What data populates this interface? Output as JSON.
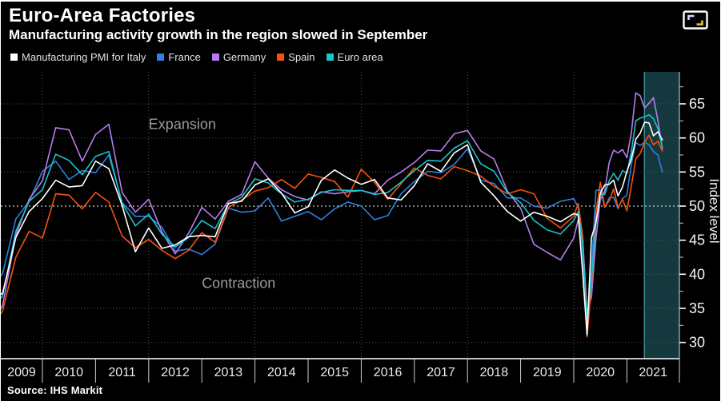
{
  "header": {
    "title": "Euro-Area Factories",
    "subtitle": "Manufacturing activity growth in the region slowed in September"
  },
  "icons": {
    "expand": "expand-chart-icon"
  },
  "source": "Source: IHS Markit",
  "chart_data": {
    "type": "line",
    "title": "Euro-Area Factories",
    "xlabel": "",
    "ylabel": "Index level",
    "ylim": [
      27.5,
      70
    ],
    "yticks": [
      30,
      35,
      40,
      45,
      50,
      55,
      60,
      65
    ],
    "yticks_minor": [
      32.5,
      37.5,
      42.5,
      47.5,
      52.5,
      57.5,
      62.5,
      67.5
    ],
    "xticks_years": [
      2009,
      2010,
      2011,
      2012,
      2013,
      2014,
      2015,
      2016,
      2017,
      2018,
      2019,
      2020,
      2021
    ],
    "grid_vertical_years": [
      2010,
      2012,
      2014,
      2016,
      2018,
      2020
    ],
    "threshold_line": 50,
    "legend_position": "top",
    "annotations": [
      {
        "text": "Expansion",
        "x": 2012.0,
        "y": 61.3
      },
      {
        "text": "Contraction",
        "x": 2013.0,
        "y": 38.0
      }
    ],
    "highlight_band": {
      "x_start": 2021.33,
      "x_end": 2021.98,
      "fill": "#14383d",
      "edge": "#35908e"
    },
    "x": [
      2009.0,
      2009.25,
      2009.5,
      2009.75,
      2010.0,
      2010.25,
      2010.5,
      2010.75,
      2011.0,
      2011.25,
      2011.5,
      2011.75,
      2012.0,
      2012.25,
      2012.5,
      2012.75,
      2013.0,
      2013.25,
      2013.5,
      2013.75,
      2014.0,
      2014.25,
      2014.5,
      2014.75,
      2015.0,
      2015.25,
      2015.5,
      2015.75,
      2016.0,
      2016.25,
      2016.5,
      2016.75,
      2017.0,
      2017.25,
      2017.5,
      2017.75,
      2018.0,
      2018.25,
      2018.5,
      2018.75,
      2019.0,
      2019.25,
      2019.5,
      2019.75,
      2020.0,
      2020.083,
      2020.167,
      2020.25,
      2020.333,
      2020.417,
      2020.5,
      2020.583,
      2020.667,
      2020.75,
      2020.833,
      2020.917,
      2021.0,
      2021.083,
      2021.167,
      2021.25,
      2021.333,
      2021.417,
      2021.5,
      2021.583,
      2021.667
    ],
    "series": [
      {
        "name": "Manufacturing PMI for Italy",
        "color": "#ffffff",
        "values": [
          36.1,
          37.2,
          45.4,
          49.2,
          51.1,
          53.8,
          52.8,
          53.0,
          56.6,
          55.5,
          50.1,
          43.3,
          46.8,
          43.8,
          44.3,
          45.5,
          45.7,
          45.5,
          50.4,
          50.7,
          53.1,
          54.0,
          51.9,
          49.0,
          49.9,
          53.8,
          55.3,
          54.1,
          53.2,
          53.9,
          51.2,
          50.9,
          53.0,
          56.2,
          55.1,
          57.8,
          59.0,
          53.5,
          51.5,
          49.2,
          47.8,
          49.1,
          48.5,
          47.7,
          48.9,
          48.7,
          40.3,
          31.1,
          45.4,
          47.5,
          51.9,
          53.1,
          53.2,
          53.8,
          51.5,
          52.8,
          55.1,
          56.9,
          59.8,
          60.7,
          62.3,
          62.2,
          60.3,
          60.9,
          59.7
        ]
      },
      {
        "name": "France",
        "color": "#2e80e0",
        "values": [
          37.9,
          40.1,
          48.1,
          50.7,
          55.1,
          56.6,
          53.9,
          55.2,
          54.9,
          57.5,
          50.5,
          48.5,
          48.5,
          46.9,
          43.4,
          43.7,
          42.9,
          44.4,
          49.7,
          49.1,
          49.3,
          51.2,
          47.8,
          48.5,
          49.2,
          48.0,
          49.6,
          50.6,
          50.0,
          48.0,
          48.6,
          51.8,
          53.6,
          55.1,
          54.9,
          56.1,
          58.4,
          53.8,
          53.3,
          51.2,
          51.2,
          50.0,
          49.7,
          50.7,
          51.1,
          49.8,
          43.2,
          31.5,
          40.6,
          52.3,
          52.4,
          49.8,
          51.2,
          51.3,
          49.6,
          51.1,
          51.6,
          56.1,
          59.3,
          58.9,
          59.4,
          59.0,
          58.0,
          57.5,
          55.0
        ]
      },
      {
        "name": "Germany",
        "color": "#b87cee",
        "values": [
          32.0,
          35.4,
          45.7,
          51.0,
          53.7,
          61.5,
          61.2,
          56.6,
          60.5,
          62.0,
          52.0,
          49.1,
          51.0,
          46.2,
          43.0,
          46.0,
          49.8,
          48.1,
          50.7,
          51.7,
          56.5,
          54.1,
          52.4,
          51.4,
          50.9,
          52.1,
          51.8,
          52.1,
          52.3,
          51.8,
          53.8,
          55.0,
          56.4,
          58.2,
          58.1,
          60.6,
          61.1,
          58.1,
          56.9,
          52.2,
          49.7,
          44.4,
          43.2,
          42.1,
          45.3,
          48.0,
          45.4,
          34.5,
          36.6,
          45.2,
          51.0,
          52.2,
          56.4,
          58.2,
          57.8,
          58.3,
          57.1,
          60.7,
          66.6,
          66.2,
          64.4,
          65.1,
          65.9,
          62.6,
          58.4
        ]
      },
      {
        "name": "Spain",
        "color": "#f4520d",
        "values": [
          31.8,
          34.6,
          42.5,
          46.3,
          45.3,
          51.8,
          51.6,
          49.6,
          52.0,
          50.6,
          45.6,
          43.9,
          45.1,
          43.5,
          42.3,
          43.5,
          46.1,
          44.7,
          49.8,
          50.9,
          52.2,
          52.7,
          53.9,
          52.6,
          54.7,
          54.2,
          53.6,
          51.3,
          55.4,
          53.5,
          51.0,
          53.3,
          55.6,
          54.5,
          54.0,
          55.8,
          55.2,
          54.4,
          52.9,
          51.8,
          52.4,
          51.8,
          48.2,
          46.8,
          48.5,
          50.4,
          45.7,
          30.8,
          38.3,
          49.0,
          53.5,
          49.9,
          50.8,
          52.5,
          49.8,
          51.0,
          49.3,
          52.9,
          56.9,
          57.7,
          59.4,
          60.4,
          59.0,
          59.5,
          58.1
        ]
      },
      {
        "name": "Euro area",
        "color": "#1ac4cc",
        "values": [
          34.4,
          36.8,
          46.3,
          50.7,
          52.4,
          57.6,
          56.7,
          54.6,
          57.3,
          58.0,
          50.4,
          47.1,
          48.8,
          45.9,
          44.0,
          45.4,
          47.9,
          46.7,
          50.3,
          51.3,
          54.0,
          53.4,
          51.8,
          50.6,
          51.0,
          52.0,
          52.4,
          52.3,
          52.3,
          51.7,
          52.0,
          53.5,
          55.2,
          56.7,
          56.6,
          58.5,
          59.6,
          56.2,
          55.1,
          52.0,
          50.5,
          47.9,
          46.5,
          45.9,
          47.9,
          49.2,
          44.5,
          33.4,
          39.4,
          47.4,
          51.8,
          51.7,
          53.7,
          54.8,
          53.8,
          55.2,
          54.8,
          57.9,
          62.5,
          62.9,
          63.1,
          63.4,
          62.8,
          61.4,
          58.6
        ]
      }
    ]
  }
}
